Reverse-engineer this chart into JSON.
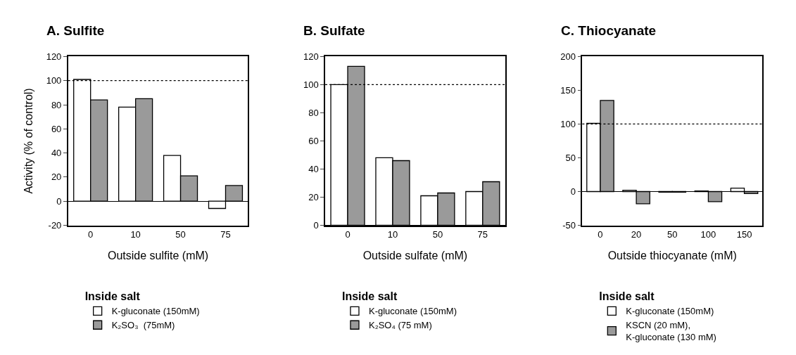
{
  "chart_data": [
    {
      "type": "bar",
      "title": "A. Sulfite",
      "xlabel": "Outside sulfite (mM)",
      "ylabel": "Activity (% of control)",
      "legend_title": "Inside salt",
      "legend": "bottom",
      "categories": [
        "0",
        "10",
        "50",
        "75"
      ],
      "ylim": [
        -20,
        120
      ],
      "yticks": [
        -20,
        0,
        20,
        40,
        60,
        80,
        100,
        120
      ],
      "series": [
        {
          "name": "K-gluconate (150mM)",
          "color": "#ffffff",
          "values": [
            101,
            78,
            38,
            -6
          ]
        },
        {
          "name": "K₂SO₃  (75mM)",
          "color": "#9a9a9a",
          "values": [
            84,
            85,
            21,
            13
          ]
        }
      ],
      "ref_lines": [
        {
          "axis": "y",
          "value": 100,
          "line_style": "dotted",
          "color": "#000000"
        }
      ]
    },
    {
      "type": "bar",
      "title": "B. Sulfate",
      "xlabel": "Outside sulfate (mM)",
      "legend_title": "Inside salt",
      "legend": "bottom",
      "categories": [
        "0",
        "10",
        "50",
        "75"
      ],
      "ylim": [
        0,
        120
      ],
      "yticks": [
        0,
        20,
        40,
        60,
        80,
        100,
        120
      ],
      "series": [
        {
          "name": "K-gluconate (150mM)",
          "color": "#ffffff",
          "values": [
            100,
            48,
            21,
            24
          ]
        },
        {
          "name": "K₂SO₄ (75 mM)",
          "color": "#9a9a9a",
          "values": [
            113,
            46,
            23,
            31
          ]
        }
      ],
      "ref_lines": [
        {
          "axis": "y",
          "value": 100,
          "line_style": "dotted",
          "color": "#000000"
        }
      ]
    },
    {
      "type": "bar",
      "title": "C. Thiocyanate",
      "xlabel": "Outside thiocyanate (mM)",
      "legend_title": "Inside salt",
      "legend": "bottom",
      "categories": [
        "0",
        "20",
        "50",
        "100",
        "150"
      ],
      "ylim": [
        -50,
        200
      ],
      "yticks": [
        -50,
        0,
        50,
        100,
        150,
        200
      ],
      "series": [
        {
          "name": "K-gluconate (150mM)",
          "color": "#ffffff",
          "values": [
            101,
            2,
            -1,
            1,
            5
          ]
        },
        {
          "name": "KSCN (20 mM),\nK-gluconate (130 mM)",
          "color": "#9a9a9a",
          "values": [
            135,
            -18,
            -1,
            -15,
            -3
          ]
        }
      ],
      "ref_lines": [
        {
          "axis": "y",
          "value": 100,
          "line_style": "dotted",
          "color": "#000000"
        }
      ]
    }
  ]
}
